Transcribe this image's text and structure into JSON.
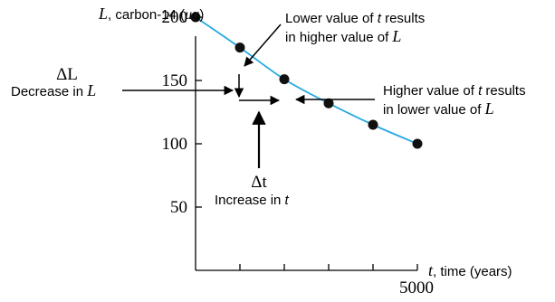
{
  "chart_data": {
    "type": "line",
    "x": [
      0,
      1000,
      2000,
      3000,
      4000,
      5000
    ],
    "series": [
      {
        "values": [
          200,
          176,
          151,
          132,
          115,
          100
        ]
      }
    ],
    "ylim": [
      0,
      210
    ],
    "xlim": [
      0,
      5000
    ],
    "y_ticks": [
      50,
      100,
      150,
      200
    ],
    "x_tick_labels": [
      "5000"
    ],
    "ylabel": {
      "var": "L",
      "rest": ", carbon-14 (",
      "mu": "μ",
      "unit": "g)"
    },
    "xlabel": {
      "var": "t",
      "rest": ", time (years)"
    },
    "grid": false,
    "colors": {
      "curve": "#27a9e1",
      "points": "#111111",
      "text": "#000000"
    }
  },
  "annotations": {
    "lower_t": {
      "line1_prefix": "Lower value of ",
      "var": "t",
      "line1_suffix": " results",
      "line2_prefix": "in higher value of ",
      "line2_var": "L"
    },
    "higher_t": {
      "line1_prefix": "Higher value of ",
      "var": "t",
      "line1_suffix": " results",
      "line2_prefix": "in lower value of ",
      "line2_var": "L"
    },
    "delta_L": {
      "symbol": "ΔL",
      "text_prefix": "Decrease in ",
      "var": "L"
    },
    "delta_t": {
      "symbol": "Δt",
      "text_prefix": "Increase in ",
      "var": "t"
    }
  }
}
